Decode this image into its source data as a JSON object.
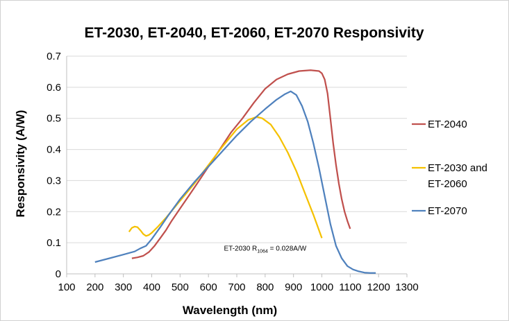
{
  "chart_data": {
    "type": "line",
    "title": "ET-2030, ET-2040, ET-2060, ET-2070 Responsivity",
    "xlabel": "Wavelength (nm)",
    "ylabel": "Responsivity (A/W)",
    "xlim": [
      100,
      1300
    ],
    "ylim": [
      0,
      0.7
    ],
    "xticks": [
      100,
      200,
      300,
      400,
      500,
      600,
      700,
      800,
      900,
      1000,
      1100,
      1200,
      1300
    ],
    "yticks": [
      0,
      0.1,
      0.2,
      0.3,
      0.4,
      0.5,
      0.6,
      0.7
    ],
    "grid": "horizontal",
    "legend_position": "right",
    "annotation": {
      "prefix": "ET-2030 R",
      "subscript": "1064",
      "suffix": " = 0.028A/W",
      "x": 800,
      "y": 0.075
    },
    "series": [
      {
        "name": "ET-2040",
        "legend_lines": [
          "ET-2040"
        ],
        "color": "#c0504d",
        "x": [
          330,
          350,
          370,
          390,
          410,
          430,
          450,
          470,
          500,
          530,
          560,
          600,
          640,
          680,
          720,
          760,
          800,
          840,
          880,
          920,
          960,
          990,
          1000,
          1010,
          1020,
          1030,
          1040,
          1050,
          1060,
          1070,
          1080,
          1090,
          1100
        ],
        "y": [
          0.05,
          0.053,
          0.058,
          0.07,
          0.09,
          0.115,
          0.14,
          0.17,
          0.21,
          0.25,
          0.29,
          0.345,
          0.4,
          0.455,
          0.5,
          0.55,
          0.595,
          0.625,
          0.642,
          0.652,
          0.655,
          0.652,
          0.645,
          0.625,
          0.58,
          0.5,
          0.42,
          0.35,
          0.29,
          0.24,
          0.2,
          0.17,
          0.145
        ]
      },
      {
        "name": "ET-2030 and ET-2060",
        "legend_lines": [
          "ET-2030 and",
          "ET-2060"
        ],
        "color": "#f5c100",
        "x": [
          320,
          330,
          340,
          350,
          360,
          370,
          380,
          390,
          400,
          420,
          450,
          500,
          550,
          600,
          650,
          700,
          740,
          770,
          790,
          820,
          850,
          880,
          910,
          940,
          970,
          1000
        ],
        "y": [
          0.135,
          0.148,
          0.152,
          0.15,
          0.14,
          0.128,
          0.122,
          0.125,
          0.132,
          0.15,
          0.18,
          0.235,
          0.29,
          0.35,
          0.41,
          0.465,
          0.495,
          0.505,
          0.5,
          0.48,
          0.44,
          0.39,
          0.33,
          0.26,
          0.19,
          0.115
        ]
      },
      {
        "name": "ET-2070",
        "legend_lines": [
          "ET-2070"
        ],
        "color": "#4f81bd",
        "x": [
          200,
          250,
          300,
          340,
          360,
          380,
          400,
          430,
          460,
          500,
          550,
          600,
          650,
          700,
          750,
          800,
          840,
          870,
          890,
          910,
          930,
          950,
          970,
          990,
          1010,
          1030,
          1050,
          1070,
          1090,
          1110,
          1130,
          1150,
          1170,
          1190
        ],
        "y": [
          0.038,
          0.05,
          0.062,
          0.072,
          0.082,
          0.09,
          0.112,
          0.15,
          0.19,
          0.24,
          0.295,
          0.345,
          0.395,
          0.445,
          0.49,
          0.53,
          0.56,
          0.578,
          0.587,
          0.575,
          0.54,
          0.49,
          0.42,
          0.34,
          0.25,
          0.16,
          0.09,
          0.05,
          0.025,
          0.014,
          0.008,
          0.004,
          0.003,
          0.003
        ]
      }
    ]
  }
}
